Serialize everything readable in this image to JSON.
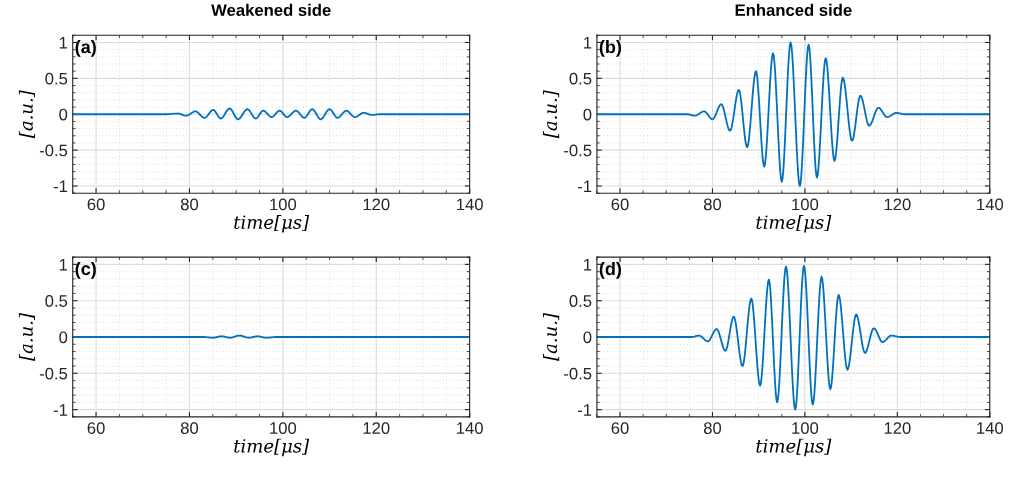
{
  "chart_data": [
    {
      "type": "line",
      "title": "Weakened side",
      "xlabel": "time[μs]",
      "ylabel": "[a.u.]",
      "annotations": [
        "(a)"
      ],
      "xlim": [
        55,
        140
      ],
      "ylim": [
        -1.1,
        1.1
      ],
      "xticks": [
        60,
        80,
        100,
        120,
        140
      ],
      "yticks": [
        -1,
        -0.5,
        0,
        0.5,
        1
      ],
      "grid": true,
      "series": [
        {
          "color": "#0072bd",
          "x": [
            55,
            75,
            77.5,
            79.3,
            81.3,
            83.2,
            85.1,
            86.7,
            88.6,
            90.4,
            92.4,
            94.2,
            95.8,
            97.6,
            99.3,
            100.9,
            102.8,
            104.6,
            106.3,
            108.1,
            110.0,
            111.7,
            113.6,
            115.4,
            117.3,
            119.1,
            120.7,
            140
          ],
          "values": [
            0,
            0,
            0.01,
            -0.02,
            0.04,
            -0.05,
            0.06,
            -0.06,
            0.08,
            -0.07,
            0.07,
            -0.06,
            0.05,
            -0.04,
            0.05,
            -0.04,
            0.05,
            -0.05,
            0.07,
            -0.07,
            0.07,
            -0.05,
            0.05,
            -0.04,
            0.02,
            -0.01,
            0,
            0
          ]
        }
      ]
    },
    {
      "type": "line",
      "title": "Enhanced side",
      "xlabel": "time[μs]",
      "ylabel": "[a.u.]",
      "annotations": [
        "(b)"
      ],
      "xlim": [
        55,
        140
      ],
      "ylim": [
        -1.1,
        1.1
      ],
      "xticks": [
        60,
        80,
        100,
        120,
        140
      ],
      "yticks": [
        -1,
        -0.5,
        0,
        0.5,
        1
      ],
      "grid": true,
      "series": [
        {
          "color": "#0072bd",
          "x": [
            55,
            74.5,
            76.2,
            78.2,
            80.0,
            81.9,
            83.8,
            85.7,
            87.5,
            89.4,
            91.2,
            93.1,
            95.0,
            96.9,
            98.9,
            100.8,
            102.6,
            104.5,
            106.4,
            108.2,
            110.2,
            112.0,
            113.9,
            115.9,
            117.8,
            119.8,
            121.5,
            140
          ],
          "values": [
            0,
            0,
            -0.02,
            0.04,
            -0.07,
            0.14,
            -0.23,
            0.34,
            -0.46,
            0.6,
            -0.73,
            0.85,
            -0.94,
            1.0,
            -1.0,
            0.97,
            -0.88,
            0.78,
            -0.65,
            0.51,
            -0.37,
            0.26,
            -0.16,
            0.09,
            -0.04,
            0.02,
            0,
            0
          ]
        }
      ]
    },
    {
      "type": "line",
      "xlabel": "time[μs]",
      "ylabel": "[a.u.]",
      "annotations": [
        "(c)"
      ],
      "xlim": [
        55,
        140
      ],
      "ylim": [
        -1.1,
        1.1
      ],
      "xticks": [
        60,
        80,
        100,
        120,
        140
      ],
      "yticks": [
        -1,
        -0.5,
        0,
        0.5,
        1
      ],
      "grid": true,
      "series": [
        {
          "color": "#0072bd",
          "x": [
            55,
            83.0,
            85.0,
            86.9,
            88.7,
            90.7,
            92.7,
            94.6,
            96.4,
            98.6,
            140
          ],
          "values": [
            0,
            0,
            -0.01,
            0.01,
            -0.01,
            0.02,
            -0.01,
            0.01,
            -0.01,
            0,
            0
          ]
        }
      ]
    },
    {
      "type": "line",
      "xlabel": "time[μs]",
      "ylabel": "[a.u.]",
      "annotations": [
        "(d)"
      ],
      "xlim": [
        55,
        140
      ],
      "ylim": [
        -1.1,
        1.1
      ],
      "xticks": [
        60,
        80,
        100,
        120,
        140
      ],
      "yticks": [
        -1,
        -0.5,
        0,
        0.5,
        1
      ],
      "grid": true,
      "series": [
        {
          "color": "#0072bd",
          "x": [
            55,
            75.5,
            77.1,
            79.0,
            80.9,
            82.8,
            84.6,
            86.5,
            88.4,
            90.3,
            92.2,
            94.0,
            95.9,
            97.9,
            99.8,
            101.7,
            103.6,
            105.5,
            107.3,
            109.2,
            111.1,
            113.0,
            114.9,
            116.8,
            118.7,
            120.6,
            140
          ],
          "values": [
            0,
            0,
            0.02,
            -0.06,
            0.11,
            -0.19,
            0.28,
            -0.4,
            0.53,
            -0.67,
            0.79,
            -0.9,
            0.97,
            -1.0,
            0.98,
            -0.93,
            0.83,
            -0.72,
            0.58,
            -0.45,
            0.31,
            -0.22,
            0.12,
            -0.07,
            0.02,
            0,
            0
          ]
        }
      ]
    }
  ]
}
